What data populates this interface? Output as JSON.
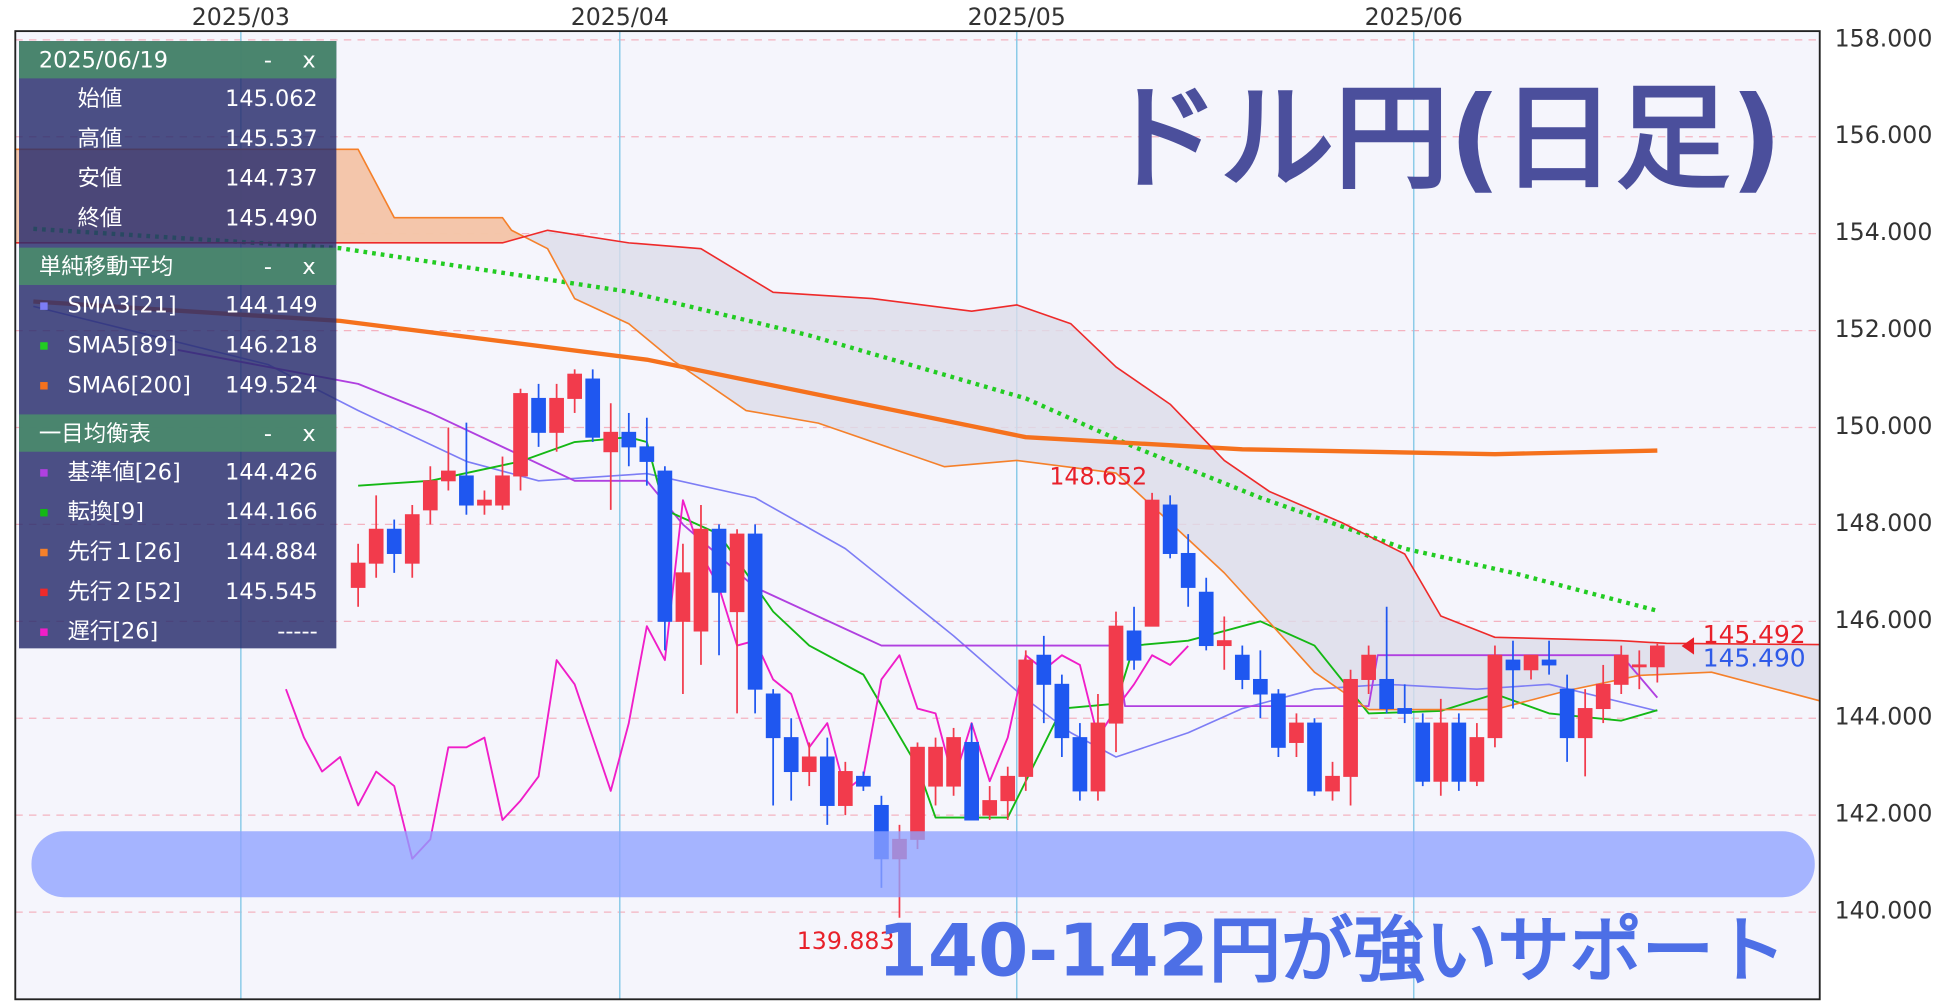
{
  "chart_data": {
    "type": "candlestick",
    "title": "ドル円(日足)",
    "annotation": "140-142円が強いサポート",
    "open": [
      146.7,
      147.2,
      147.9,
      147.2,
      148.3,
      148.9,
      149.0,
      148.4,
      148.4,
      149.0,
      150.6,
      149.9,
      150.6,
      151.0,
      149.5,
      149.9,
      149.6,
      149.1,
      146.0,
      145.8,
      147.9,
      146.2,
      147.8,
      144.5,
      143.6,
      142.9,
      143.2,
      142.2,
      142.8,
      142.2,
      141.1,
      141.5,
      142.6,
      142.6,
      143.5,
      142.0,
      142.3,
      142.8,
      145.3,
      144.7,
      143.6,
      142.5,
      143.9,
      145.8,
      145.9,
      148.4,
      147.4,
      146.6,
      145.5,
      145.3,
      144.8,
      144.5,
      143.5,
      143.9,
      142.5,
      142.8,
      144.8,
      144.8,
      144.2,
      143.9,
      142.7,
      143.9,
      142.7,
      143.6,
      145.2,
      145.0,
      145.2,
      144.6,
      143.6,
      144.2,
      144.7,
      145.1,
      145.062
    ],
    "high": [
      147.6,
      148.6,
      148.1,
      148.4,
      149.2,
      150.0,
      150.1,
      148.7,
      149.4,
      150.8,
      150.9,
      150.9,
      151.2,
      151.2,
      150.5,
      150.3,
      150.2,
      149.2,
      147.6,
      148.4,
      148.0,
      147.9,
      148.0,
      144.6,
      144.0,
      143.5,
      143.6,
      143.1,
      142.9,
      142.4,
      141.8,
      143.5,
      143.6,
      143.8,
      143.9,
      142.6,
      143.0,
      145.4,
      145.7,
      144.9,
      143.9,
      144.5,
      146.2,
      146.3,
      148.652,
      148.6,
      147.8,
      146.9,
      146.1,
      145.5,
      145.4,
      144.6,
      144.1,
      144.0,
      143.1,
      145.0,
      145.5,
      146.3,
      144.7,
      144.1,
      144.4,
      144.1,
      143.9,
      145.5,
      145.6,
      145.3,
      145.6,
      144.9,
      144.6,
      145.1,
      145.5,
      145.4,
      145.537
    ],
    "low": [
      146.3,
      146.9,
      147.0,
      146.9,
      148.0,
      148.7,
      148.2,
      148.2,
      148.3,
      148.7,
      149.6,
      149.5,
      150.3,
      149.7,
      148.3,
      149.2,
      148.8,
      145.4,
      144.5,
      145.1,
      145.3,
      144.1,
      144.1,
      142.2,
      142.3,
      142.6,
      141.8,
      142.0,
      142.5,
      140.5,
      139.883,
      141.3,
      142.2,
      142.4,
      141.9,
      141.9,
      141.9,
      142.5,
      143.9,
      143.2,
      142.3,
      142.3,
      143.3,
      145.0,
      145.9,
      147.3,
      146.3,
      145.4,
      145.0,
      144.6,
      144.0,
      143.2,
      143.2,
      142.4,
      142.3,
      142.2,
      144.5,
      144.1,
      143.9,
      142.6,
      142.4,
      142.5,
      142.6,
      143.4,
      144.2,
      144.8,
      144.9,
      143.1,
      142.8,
      143.9,
      144.5,
      144.6,
      144.737
    ],
    "close": [
      147.2,
      147.9,
      147.4,
      148.2,
      148.9,
      149.1,
      148.4,
      148.5,
      149.0,
      150.7,
      149.9,
      150.6,
      151.1,
      149.8,
      149.9,
      149.6,
      149.3,
      146.0,
      147.0,
      147.9,
      146.6,
      147.8,
      144.6,
      143.6,
      142.9,
      143.2,
      142.2,
      142.9,
      142.6,
      141.1,
      141.5,
      143.4,
      143.4,
      143.6,
      141.9,
      142.3,
      142.8,
      145.2,
      144.7,
      143.6,
      142.5,
      143.9,
      145.9,
      145.2,
      148.5,
      147.4,
      146.7,
      145.5,
      145.6,
      144.8,
      144.5,
      143.4,
      143.9,
      142.5,
      142.8,
      144.8,
      145.3,
      144.2,
      144.1,
      142.7,
      143.9,
      142.7,
      143.6,
      145.3,
      145.0,
      145.3,
      145.1,
      143.6,
      144.2,
      144.7,
      145.3,
      145.1,
      145.49
    ],
    "up_color": "#f23b4c",
    "down_color": "#1f57f0",
    "xlim": [
      -19,
      81
    ],
    "xticks": [
      {
        "value": -6.5,
        "label": "2025/03"
      },
      {
        "value": 14.5,
        "label": "2025/04"
      },
      {
        "value": 36.5,
        "label": "2025/05"
      },
      {
        "value": 58.5,
        "label": "2025/06"
      }
    ],
    "ylim": [
      138.2,
      158.18
    ],
    "yticks": [
      {
        "value": 140,
        "label": "140.000"
      },
      {
        "value": 142,
        "label": "142.000"
      },
      {
        "value": 144,
        "label": "144.000"
      },
      {
        "value": 146,
        "label": "146.000"
      },
      {
        "value": 148,
        "label": "148.000"
      },
      {
        "value": 150,
        "label": "150.000"
      },
      {
        "value": 152,
        "label": "152.000"
      },
      {
        "value": 154,
        "label": "154.000"
      },
      {
        "value": 156,
        "label": "156.000"
      },
      {
        "value": 158,
        "label": "158.000"
      }
    ],
    "grid": true,
    "price_markers": [
      {
        "value": 145.492,
        "label": "145.492",
        "color": "#e8202a"
      },
      {
        "value": 145.49,
        "label": "145.490",
        "color": "#2f5be8"
      }
    ],
    "controls": [
      "-",
      "x"
    ],
    "ohlc_panel": {
      "date": "2025/06/19",
      "rows": [
        {
          "label": "始値",
          "value": "145.062"
        },
        {
          "label": "高値",
          "value": "145.537"
        },
        {
          "label": "安値",
          "value": "144.737"
        },
        {
          "label": "終値",
          "value": "145.490"
        }
      ]
    },
    "indicator_groups": [
      {
        "title": "単純移動平均",
        "series": [
          {
            "name": "SMA3[21]",
            "readout": "144.149",
            "color": "#7d7df5",
            "width": 1.3,
            "dashed": false,
            "x": [
              -18,
              -5,
              0,
              6,
              10,
              16,
              22,
              27,
              33,
              37,
              39.5,
              42,
              46,
              49,
              53,
              57,
              62,
              66,
              72
            ],
            "values": [
              152.5,
              151.3,
              150.35,
              149.3,
              148.9,
              149.05,
              148.55,
              147.5,
              145.7,
              144.4,
              143.7,
              143.2,
              143.7,
              144.2,
              144.6,
              144.7,
              144.6,
              144.7,
              144.149
            ]
          },
          {
            "name": "SMA5[89]",
            "readout": "146.218",
            "color": "#22cc22",
            "width": 3.5,
            "dashed": true,
            "x": [
              -18,
              -1,
              15,
              25,
              37,
              43,
              50,
              58,
              64,
              72
            ],
            "values": [
              154.1,
              153.7,
              152.8,
              151.9,
              150.6,
              149.6,
              148.55,
              147.5,
              147.0,
              146.218
            ]
          },
          {
            "name": "SMA6[200]",
            "readout": "149.524",
            "color": "#f5711d",
            "width": 3.5,
            "dashed": false,
            "x": [
              -18,
              -1,
              16,
              37,
              49,
              63,
              72
            ],
            "values": [
              152.6,
              152.2,
              151.4,
              149.8,
              149.55,
              149.45,
              149.524
            ]
          }
        ]
      },
      {
        "title": "一目均衡表",
        "cloud": {
          "series": [
            2,
            3
          ],
          "colors": [
            "#f6c3a3",
            "#dcdce8"
          ]
        },
        "series": [
          {
            "name": "基準値[26]",
            "readout": "144.426",
            "color": "#b040e0",
            "width": 1.5,
            "dashed": false,
            "x": [
              -10,
              0,
              4,
              8,
              12,
              16,
              18,
              22,
              29,
              42,
              42.5,
              56,
              56.5,
              70,
              72
            ],
            "values": [
              151.6,
              150.9,
              150.3,
              149.6,
              148.9,
              148.9,
              148.0,
              146.7,
              145.5,
              145.5,
              144.25,
              144.25,
              145.3,
              145.3,
              144.426
            ]
          },
          {
            "name": "転換[9]",
            "readout": "144.166",
            "color": "#14b814",
            "width": 1.5,
            "dashed": false,
            "x": [
              0,
              4,
              9,
              12,
              15,
              16,
              17,
              20,
              23,
              25,
              28,
              31,
              32,
              36,
              39,
              42,
              43,
              46,
              50,
              53,
              56,
              60,
              63,
              66,
              70,
              72
            ],
            "values": [
              148.8,
              148.9,
              149.3,
              149.7,
              149.8,
              149.7,
              148.3,
              147.8,
              146.2,
              145.5,
              144.9,
              143.0,
              141.95,
              141.95,
              144.2,
              144.3,
              145.5,
              145.6,
              146.0,
              145.5,
              144.1,
              144.15,
              144.5,
              144.1,
              143.95,
              144.166
            ]
          },
          {
            "name": "先行１[26]",
            "readout": "144.884",
            "color": "#f5802a",
            "width": 1.3,
            "dashed": false,
            "x": [
              -19,
              0,
              2,
              8,
              8.5,
              10.5,
              12,
              15,
              17.5,
              21.5,
              25.5,
              32.5,
              36.5,
              42,
              45,
              48,
              50.5,
              53,
              56,
              63,
              67,
              71,
              75,
              81
            ],
            "values": [
              155.74,
              155.74,
              154.33,
              154.33,
              154.07,
              153.69,
              152.66,
              152.14,
              151.37,
              150.35,
              150.09,
              149.19,
              149.32,
              149.06,
              148.04,
              147.0,
              145.98,
              144.95,
              144.18,
              144.18,
              144.57,
              144.884,
              144.95,
              144.36
            ]
          },
          {
            "name": "先行２[52]",
            "readout": "145.545",
            "color": "#ee2a2a",
            "width": 1.3,
            "dashed": false,
            "x": [
              -19,
              8,
              10.5,
              15,
              19,
              23,
              28.5,
              34,
              36.5,
              39.5,
              42,
              45,
              48,
              50.5,
              54.5,
              58,
              60,
              63,
              70,
              72.5,
              81
            ],
            "values": [
              153.81,
              153.81,
              154.07,
              153.81,
              153.69,
              152.79,
              152.66,
              152.4,
              152.53,
              152.14,
              151.25,
              150.48,
              149.32,
              148.68,
              148.04,
              147.39,
              146.11,
              145.67,
              145.6,
              145.545,
              145.52
            ]
          },
          {
            "name": "遅行[26]",
            "readout": "-----",
            "color": "#f01ec8",
            "width": 1.5,
            "dashed": false,
            "x": [
              -4,
              -3,
              -2,
              -1,
              0,
              1,
              2,
              3,
              4,
              5,
              6,
              7,
              8,
              9,
              10,
              11,
              12,
              13,
              14,
              15,
              16,
              17,
              18,
              19,
              20,
              21,
              22,
              23,
              24,
              25,
              26,
              27,
              28,
              29,
              30,
              31,
              32,
              33,
              34,
              35,
              36,
              37,
              38,
              39,
              40,
              41,
              42,
              43,
              44,
              45,
              46
            ],
            "values": [
              144.6,
              143.6,
              142.9,
              143.2,
              142.2,
              142.9,
              142.6,
              141.1,
              141.5,
              143.4,
              143.4,
              143.6,
              141.9,
              142.3,
              142.8,
              145.2,
              144.7,
              143.6,
              142.5,
              143.9,
              145.9,
              145.2,
              148.5,
              147.4,
              146.7,
              145.5,
              145.6,
              144.8,
              144.5,
              143.4,
              143.9,
              142.5,
              142.8,
              144.8,
              145.3,
              144.2,
              144.1,
              142.7,
              143.9,
              142.7,
              143.6,
              145.3,
              145.0,
              145.3,
              145.1,
              143.6,
              144.2,
              144.7,
              145.3,
              145.1,
              145.49
            ]
          }
        ]
      }
    ]
  }
}
